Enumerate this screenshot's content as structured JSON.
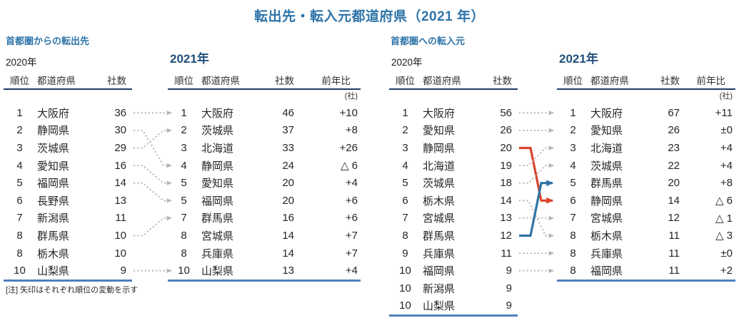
{
  "title": "転出先・転入元都道府県（2021 年）",
  "note": "[注] 矢印はそれぞれ順位の変動を示す",
  "colors": {
    "accent_blue": "#2e74a8",
    "year_navy": "#1f4e79",
    "header_underline_navy": "#1f3864",
    "table_bottom_blue": "#4f81bd",
    "arrow_gray": "#b5b5b5",
    "arrow_red": "#d9442a",
    "arrow_blue": "#2f74a5",
    "text": "#262626"
  },
  "sections": [
    {
      "heading": "首都圏からの転出先",
      "tables": [
        {
          "year_label": "2020年",
          "columns": [
            "順位",
            "都道府県",
            "社数"
          ],
          "rows": [
            [
              "1",
              "大阪府",
              "36"
            ],
            [
              "2",
              "静岡県",
              "30"
            ],
            [
              "3",
              "茨城県",
              "29"
            ],
            [
              "4",
              "愛知県",
              "16"
            ],
            [
              "5",
              "福岡県",
              "14"
            ],
            [
              "6",
              "長野県",
              "13"
            ],
            [
              "7",
              "新潟県",
              "11"
            ],
            [
              "8",
              "群馬県",
              "10"
            ],
            [
              "8",
              "栃木県",
              "10"
            ],
            [
              "10",
              "山梨県",
              "9"
            ]
          ]
        },
        {
          "year_label": "2021年",
          "columns": [
            "順位",
            "都道府県",
            "社数",
            "前年比"
          ],
          "unit": "(社)",
          "rows": [
            [
              "1",
              "大阪府",
              "46",
              "+10"
            ],
            [
              "2",
              "茨城県",
              "37",
              "+8"
            ],
            [
              "3",
              "北海道",
              "33",
              "+26"
            ],
            [
              "4",
              "静岡県",
              "24",
              "△ 6"
            ],
            [
              "5",
              "愛知県",
              "20",
              "+4"
            ],
            [
              "5",
              "福岡県",
              "20",
              "+6"
            ],
            [
              "7",
              "群馬県",
              "16",
              "+6"
            ],
            [
              "8",
              "宮城県",
              "14",
              "+7"
            ],
            [
              "8",
              "兵庫県",
              "14",
              "+7"
            ],
            [
              "10",
              "山梨県",
              "13",
              "+4"
            ]
          ]
        }
      ],
      "arrows": [
        {
          "from": 1,
          "to": 1,
          "style": "gray"
        },
        {
          "from": 2,
          "to": 4,
          "style": "gray"
        },
        {
          "from": 3,
          "to": 2,
          "style": "gray"
        },
        {
          "from": 4,
          "to": 5,
          "style": "gray"
        },
        {
          "from": 5,
          "to": 6,
          "style": "gray"
        },
        {
          "from": 8,
          "to": 7,
          "style": "gray"
        },
        {
          "from": 10,
          "to": 10,
          "style": "gray"
        }
      ]
    },
    {
      "heading": "首都圏への転入元",
      "tables": [
        {
          "year_label": "2020年",
          "columns": [
            "順位",
            "都道府県",
            "社数"
          ],
          "rows": [
            [
              "1",
              "大阪府",
              "56"
            ],
            [
              "2",
              "愛知県",
              "26"
            ],
            [
              "3",
              "静岡県",
              "20"
            ],
            [
              "4",
              "北海道",
              "19"
            ],
            [
              "5",
              "茨城県",
              "18"
            ],
            [
              "6",
              "栃木県",
              "14"
            ],
            [
              "7",
              "宮城県",
              "13"
            ],
            [
              "8",
              "群馬県",
              "12"
            ],
            [
              "9",
              "兵庫県",
              "11"
            ],
            [
              "10",
              "福岡県",
              "9"
            ],
            [
              "10",
              "新潟県",
              "9"
            ],
            [
              "10",
              "山梨県",
              "9"
            ]
          ]
        },
        {
          "year_label": "2021年",
          "columns": [
            "順位",
            "都道府県",
            "社数",
            "前年比"
          ],
          "unit": "(社)",
          "rows": [
            [
              "1",
              "大阪府",
              "67",
              "+11"
            ],
            [
              "2",
              "愛知県",
              "26",
              "±0"
            ],
            [
              "3",
              "北海道",
              "23",
              "+4"
            ],
            [
              "4",
              "茨城県",
              "22",
              "+4"
            ],
            [
              "5",
              "群馬県",
              "20",
              "+8"
            ],
            [
              "6",
              "静岡県",
              "14",
              "△ 6"
            ],
            [
              "7",
              "宮城県",
              "12",
              "△ 1"
            ],
            [
              "8",
              "栃木県",
              "11",
              "△ 3"
            ],
            [
              "8",
              "兵庫県",
              "11",
              "±0"
            ],
            [
              "8",
              "福岡県",
              "11",
              "+2"
            ]
          ]
        }
      ],
      "arrows": [
        {
          "from": 1,
          "to": 1,
          "style": "gray"
        },
        {
          "from": 2,
          "to": 2,
          "style": "gray"
        },
        {
          "from": 3,
          "to": 6,
          "style": "red"
        },
        {
          "from": 4,
          "to": 3,
          "style": "gray"
        },
        {
          "from": 5,
          "to": 4,
          "style": "gray"
        },
        {
          "from": 6,
          "to": 8,
          "style": "gray"
        },
        {
          "from": 7,
          "to": 7,
          "style": "gray"
        },
        {
          "from": 8,
          "to": 5,
          "style": "blue"
        },
        {
          "from": 9,
          "to": 9,
          "style": "gray"
        },
        {
          "from": 10,
          "to": 10,
          "style": "gray"
        }
      ]
    }
  ],
  "chart_data": [
    {
      "type": "table",
      "title": "首都圏からの転出先",
      "tables": [
        {
          "year": "2020年",
          "columns": [
            "順位",
            "都道府県",
            "社数"
          ],
          "rows": [
            [
              "1",
              "大阪府",
              36
            ],
            [
              "2",
              "静岡県",
              30
            ],
            [
              "3",
              "茨城県",
              29
            ],
            [
              "4",
              "愛知県",
              16
            ],
            [
              "5",
              "福岡県",
              14
            ],
            [
              "6",
              "長野県",
              13
            ],
            [
              "7",
              "新潟県",
              11
            ],
            [
              "8",
              "群馬県",
              10
            ],
            [
              "8",
              "栃木県",
              10
            ],
            [
              "10",
              "山梨県",
              9
            ]
          ]
        },
        {
          "year": "2021年",
          "columns": [
            "順位",
            "都道府県",
            "社数",
            "前年比(社)"
          ],
          "rows": [
            [
              "1",
              "大阪府",
              46,
              "+10"
            ],
            [
              "2",
              "茨城県",
              37,
              "+8"
            ],
            [
              "3",
              "北海道",
              33,
              "+26"
            ],
            [
              "4",
              "静岡県",
              24,
              "△ 6"
            ],
            [
              "5",
              "愛知県",
              20,
              "+4"
            ],
            [
              "5",
              "福岡県",
              20,
              "+6"
            ],
            [
              "7",
              "群馬県",
              16,
              "+6"
            ],
            [
              "8",
              "宮城県",
              14,
              "+7"
            ],
            [
              "8",
              "兵庫県",
              14,
              "+7"
            ],
            [
              "10",
              "山梨県",
              13,
              "+4"
            ]
          ]
        }
      ]
    },
    {
      "type": "table",
      "title": "首都圏への転入元",
      "tables": [
        {
          "year": "2020年",
          "columns": [
            "順位",
            "都道府県",
            "社数"
          ],
          "rows": [
            [
              "1",
              "大阪府",
              56
            ],
            [
              "2",
              "愛知県",
              26
            ],
            [
              "3",
              "静岡県",
              20
            ],
            [
              "4",
              "北海道",
              19
            ],
            [
              "5",
              "茨城県",
              18
            ],
            [
              "6",
              "栃木県",
              14
            ],
            [
              "7",
              "宮城県",
              13
            ],
            [
              "8",
              "群馬県",
              12
            ],
            [
              "9",
              "兵庫県",
              11
            ],
            [
              "10",
              "福岡県",
              9
            ],
            [
              "10",
              "新潟県",
              9
            ],
            [
              "10",
              "山梨県",
              9
            ]
          ]
        },
        {
          "year": "2021年",
          "columns": [
            "順位",
            "都道府県",
            "社数",
            "前年比(社)"
          ],
          "rows": [
            [
              "1",
              "大阪府",
              67,
              "+11"
            ],
            [
              "2",
              "愛知県",
              26,
              "±0"
            ],
            [
              "3",
              "北海道",
              23,
              "+4"
            ],
            [
              "4",
              "茨城県",
              22,
              "+4"
            ],
            [
              "5",
              "群馬県",
              20,
              "+8"
            ],
            [
              "6",
              "静岡県",
              14,
              "△ 6"
            ],
            [
              "7",
              "宮城県",
              12,
              "△ 1"
            ],
            [
              "8",
              "栃木県",
              11,
              "△ 3"
            ],
            [
              "8",
              "兵庫県",
              11,
              "±0"
            ],
            [
              "8",
              "福岡県",
              11,
              "+2"
            ]
          ]
        }
      ]
    }
  ]
}
